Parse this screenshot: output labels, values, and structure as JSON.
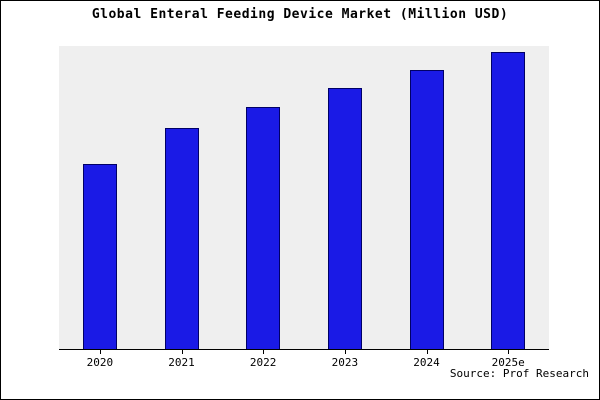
{
  "title": "Global Enteral Feeding Device Market (Million USD)",
  "source": "Source: Prof Research",
  "chart_data": {
    "type": "bar",
    "title": "Global Enteral Feeding Device Market (Million USD)",
    "categories": [
      "2020",
      "2021",
      "2022",
      "2023",
      "2024",
      "2025e"
    ],
    "values": [
      61,
      73,
      80,
      86,
      92,
      98
    ],
    "xlabel": "",
    "ylabel": "",
    "ylim": [
      0,
      100
    ],
    "grid": false,
    "legend": "none",
    "annotation": "Source: Prof Research",
    "colors": {
      "bar_fill": "#1a1ae6",
      "bar_border": "#000066",
      "plot_background": "#efefef",
      "axis": "#000000"
    }
  }
}
